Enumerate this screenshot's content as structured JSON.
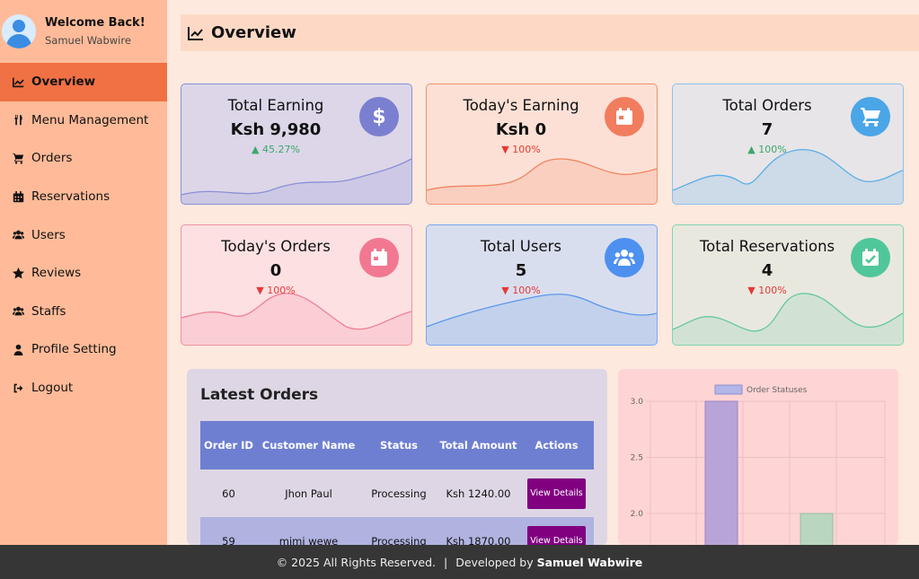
{
  "profile": {
    "welcome": "Welcome Back!",
    "name": "Samuel Wabwire"
  },
  "sidebar": {
    "items": [
      {
        "label": "Overview",
        "icon": "chart-line-icon",
        "active": true
      },
      {
        "label": "Menu Management",
        "icon": "utensils-icon"
      },
      {
        "label": "Orders",
        "icon": "cart-icon"
      },
      {
        "label": "Reservations",
        "icon": "calendar-icon"
      },
      {
        "label": "Users",
        "icon": "users-icon"
      },
      {
        "label": "Reviews",
        "icon": "star-icon"
      },
      {
        "label": "Staffs",
        "icon": "users-icon"
      },
      {
        "label": "Profile Setting",
        "icon": "user-icon"
      },
      {
        "label": "Logout",
        "icon": "logout-icon"
      }
    ]
  },
  "header": {
    "title": "Overview"
  },
  "cards": [
    {
      "title": "Total Earning",
      "value": "Ksh 9,980",
      "change": "▲ 45.27%",
      "trend": "up",
      "icon": "dollar-icon",
      "icon_color": "#7b7fcf",
      "bg": "#dcd6e8",
      "border": "#8a8fd8",
      "wave": "#8b8fd6"
    },
    {
      "title": "Today's Earning",
      "value": "Ksh 0",
      "change": "▼ 100%",
      "trend": "down",
      "icon": "calendar-icon",
      "icon_color": "#f27c5e",
      "bg": "#fde0d5",
      "border": "#f0906e",
      "wave": "#ef8461"
    },
    {
      "title": "Total Orders",
      "value": "7",
      "change": "▲ 100%",
      "trend": "up",
      "icon": "cart-icon",
      "icon_color": "#4aa6e6",
      "bg": "#e7e5e8",
      "border": "#8cc2ec",
      "wave": "#5aaee6"
    },
    {
      "title": "Today's Orders",
      "value": "0",
      "change": "▼ 100%",
      "trend": "down",
      "icon": "calendar-icon",
      "icon_color": "#f27891",
      "bg": "#fde0e2",
      "border": "#f291a4",
      "wave": "#ef7f96"
    },
    {
      "title": "Total Users",
      "value": "5",
      "change": "▼ 100%",
      "trend": "down",
      "icon": "users-icon",
      "icon_color": "#4d90f0",
      "bg": "#d9deee",
      "border": "#7aa8f0",
      "wave": "#5c98ea"
    },
    {
      "title": "Total Reservations",
      "value": "4",
      "change": "▼ 100%",
      "trend": "down",
      "icon": "calendar-check-icon",
      "icon_color": "#4fc79a",
      "bg": "#e9e8df",
      "border": "#7fd4b0",
      "wave": "#63c89f"
    }
  ],
  "latest_orders": {
    "title": "Latest Orders",
    "columns": [
      "Order ID",
      "Customer Name",
      "Status",
      "Total Amount",
      "Actions"
    ],
    "rows": [
      {
        "id": "60",
        "customer": "Jhon Paul",
        "status": "Processing",
        "amount": "Ksh 1240.00",
        "action": "View Details"
      },
      {
        "id": "59",
        "customer": "mimi wewe",
        "status": "Processing",
        "amount": "Ksh 1870.00",
        "action": "View Details"
      }
    ]
  },
  "chart_data": {
    "type": "bar",
    "legend": "Order Statuses",
    "legend_position": "top",
    "grid": true,
    "y_ticks": [
      "3.0",
      "2.5",
      "2.0"
    ],
    "ylim": [
      0,
      3
    ],
    "values": [
      3,
      2
    ],
    "colors": [
      "#b8a4d6",
      "#b9d6c0"
    ]
  },
  "footer": {
    "copyright": "© 2025 All Rights Reserved.",
    "separator": "|",
    "developed_by": "Developed by",
    "author": "Samuel Wabwire"
  }
}
